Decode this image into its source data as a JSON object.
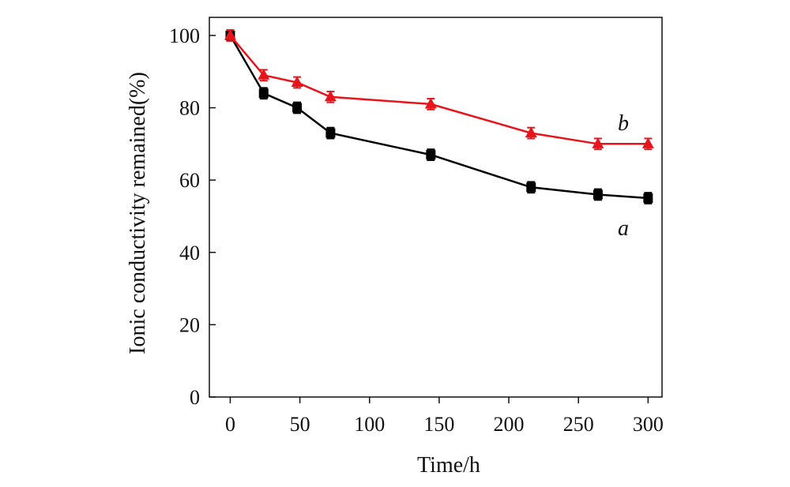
{
  "chart_data": {
    "type": "line",
    "title": "",
    "xlabel": "Time/h",
    "ylabel": "Ionic conductivity remained(%)",
    "xlim": [
      -15,
      310
    ],
    "ylim": [
      0,
      105
    ],
    "xticks": [
      0,
      50,
      100,
      150,
      200,
      250,
      300
    ],
    "yticks": [
      0,
      20,
      40,
      60,
      80,
      100
    ],
    "grid": false,
    "series": [
      {
        "name": "a",
        "color": "#000000",
        "marker": "square",
        "x": [
          0,
          24,
          48,
          72,
          144,
          216,
          264,
          300
        ],
        "values": [
          100,
          84,
          80,
          73,
          67,
          58,
          56,
          55
        ],
        "error": [
          1.5,
          1.5,
          1.5,
          1.5,
          1.5,
          1.5,
          1.5,
          1.5
        ]
      },
      {
        "name": "b",
        "color": "#e8141b",
        "marker": "triangle",
        "x": [
          0,
          24,
          48,
          72,
          144,
          216,
          264,
          300
        ],
        "values": [
          100,
          89,
          87,
          83,
          81,
          73,
          70,
          70
        ],
        "error": [
          1.5,
          1.5,
          1.5,
          1.5,
          1.5,
          1.5,
          1.5,
          1.5
        ]
      }
    ]
  }
}
